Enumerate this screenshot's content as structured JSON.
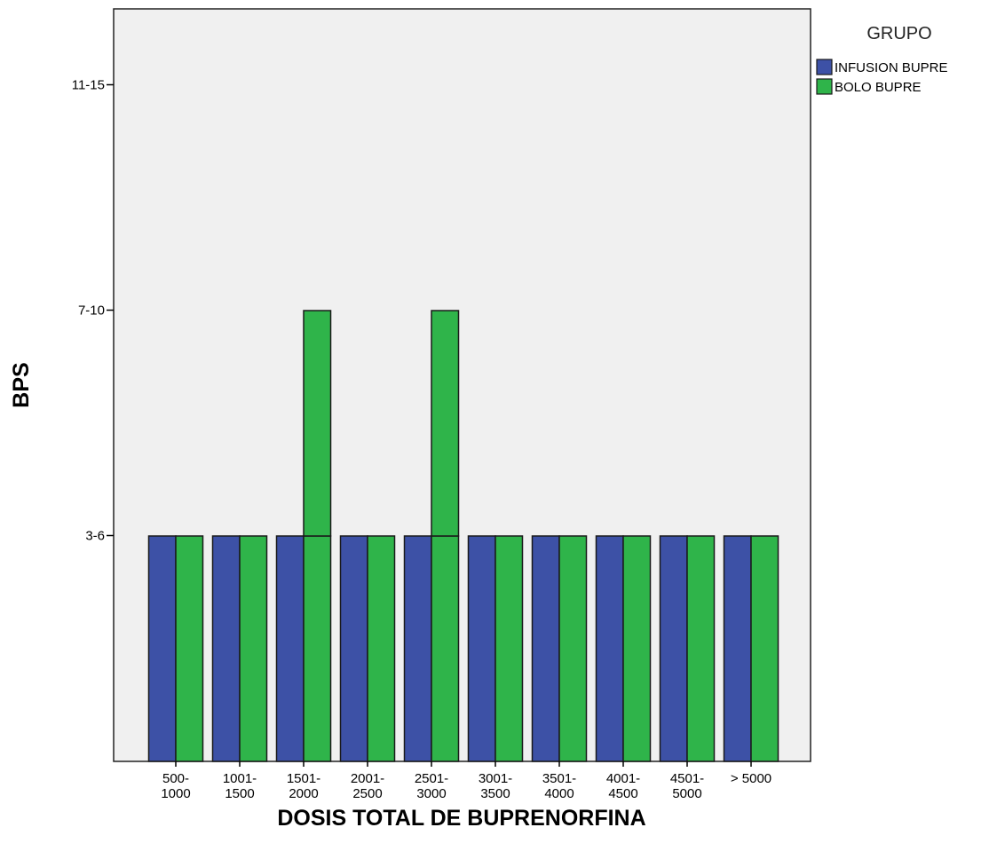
{
  "chart_data": {
    "type": "bar",
    "title": "",
    "xlabel": "DOSIS TOTAL DE BUPRENORFINA",
    "ylabel": "BPS",
    "categories": [
      [
        "500-",
        "1000"
      ],
      [
        "1001-",
        "1500"
      ],
      [
        "1501-",
        "2000"
      ],
      [
        "2001-",
        "2500"
      ],
      [
        "2501-",
        "3000"
      ],
      [
        "3001-",
        "3500"
      ],
      [
        "3501-",
        "4000"
      ],
      [
        "4001-",
        "4500"
      ],
      [
        "4501-",
        "5000"
      ],
      [
        "> 5000"
      ]
    ],
    "y_categories": [
      "3-6",
      "7-10",
      "11-15"
    ],
    "ylim": [
      0,
      3.67
    ],
    "series": [
      {
        "name": "INFUSION BUPRE",
        "color": "#3d51a6",
        "values": [
          1,
          1,
          1,
          1,
          1,
          1,
          1,
          1,
          1,
          1
        ]
      },
      {
        "name": "BOLO BUPRE",
        "color": "#2fb44a",
        "values": [
          1,
          1,
          2,
          1,
          2,
          1,
          1,
          1,
          1,
          1
        ]
      }
    ],
    "stacked_segments_note": "",
    "legend": {
      "title": "GRUPO",
      "position": "right-top"
    },
    "plot_background": "#f0f0f0",
    "grid": false
  }
}
